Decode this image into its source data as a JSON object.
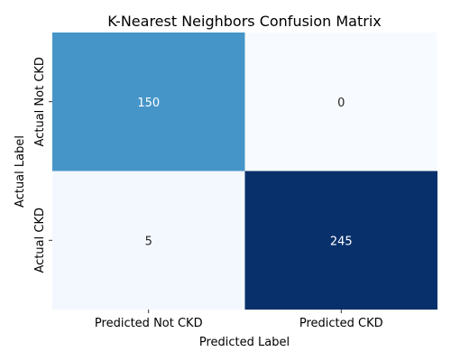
{
  "chart_data": {
    "type": "heatmap",
    "title": "K-Nearest Neighbors Confusion Matrix",
    "xlabel": "Predicted Label",
    "ylabel": "Actual Label",
    "x_categories": [
      "Predicted Not CKD",
      "Predicted CKD"
    ],
    "y_categories": [
      "Actual Not CKD",
      "Actual CKD"
    ],
    "values": [
      [
        150,
        0
      ],
      [
        5,
        245
      ]
    ],
    "colormap": "Blues",
    "value_range": [
      0,
      245
    ],
    "colorbar": false,
    "grid": false
  }
}
